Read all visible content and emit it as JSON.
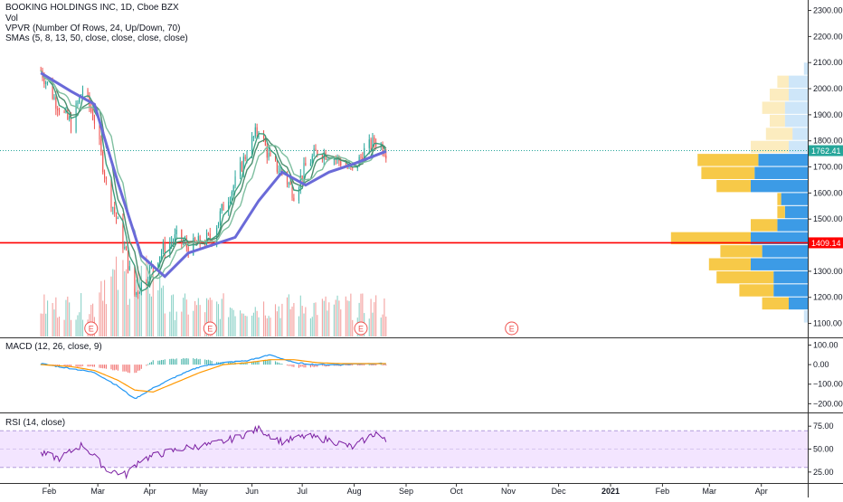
{
  "legends": {
    "title": "BOOKING HOLDINGS INC, 1D, Cboe BZX",
    "vol": "Vol",
    "vpvr": "VPVR (Number Of Rows, 24, Up/Down, 70)",
    "smas": "SMAs (5, 8, 13, 50, close, close, close, close)",
    "macd": "MACD (12, 26, close, 9)",
    "rsi": "RSI (14, close)"
  },
  "colors": {
    "up": "#26a69a",
    "down": "#ef5350",
    "sma50": "#6a6ad8",
    "macd": "#2196f3",
    "signal": "#ff9800",
    "rsi": "#7b1fa2",
    "rsi_band": "#f3e5ff",
    "hline": "#ff0000",
    "last_price": "#26a69a",
    "vpvr_up": "#3c9be6",
    "vpvr_down": "#f7c948"
  },
  "chart_data": {
    "type": "line",
    "title": "BOOKING HOLDINGS INC, 1D, Cboe BZX",
    "price_axis": {
      "ticks": [
        2300,
        2200,
        2100,
        2000,
        1900,
        1800,
        1700,
        1600,
        1500,
        1400,
        1300,
        1200,
        1100
      ],
      "tick_labels": [
        "2300.00",
        "2200.00",
        "2100.00",
        "2000.00",
        "1900.00",
        "1800.00",
        "1700.00",
        "1600.00",
        "1500.00",
        "1400.00",
        "1300.00",
        "1200.00",
        "1100.00"
      ],
      "ylim": [
        1050,
        2340
      ]
    },
    "time_axis": {
      "months": [
        "Feb",
        "Mar",
        "Apr",
        "May",
        "Jun",
        "Jul",
        "Aug",
        "Sep",
        "Oct",
        "Nov",
        "Dec",
        "2021",
        "Feb",
        "Mar",
        "Apr"
      ]
    },
    "last_price": "1762.41",
    "horizontal_line": "1409.14",
    "price_anchors": {
      "x": [
        "2020-01-27",
        "2020-02-05",
        "2020-02-14",
        "2020-02-21",
        "2020-02-28",
        "2020-03-06",
        "2020-03-13",
        "2020-03-18",
        "2020-03-23",
        "2020-03-31",
        "2020-04-08",
        "2020-04-17",
        "2020-04-24",
        "2020-05-01",
        "2020-05-08",
        "2020-05-15",
        "2020-05-22",
        "2020-05-29",
        "2020-06-05",
        "2020-06-12",
        "2020-06-19",
        "2020-06-26",
        "2020-07-03",
        "2020-07-10",
        "2020-07-17",
        "2020-07-24",
        "2020-07-31",
        "2020-08-07",
        "2020-08-14",
        "2020-08-20"
      ],
      "close": [
        2070,
        1950,
        1860,
        2000,
        1880,
        1640,
        1480,
        1360,
        1210,
        1290,
        1380,
        1430,
        1390,
        1410,
        1430,
        1550,
        1640,
        1760,
        1850,
        1720,
        1680,
        1600,
        1700,
        1760,
        1750,
        1720,
        1680,
        1760,
        1800,
        1762
      ]
    },
    "sma50": {
      "x": [
        "2020-01-27",
        "2020-02-14",
        "2020-02-28",
        "2020-03-13",
        "2020-03-27",
        "2020-04-10",
        "2020-04-24",
        "2020-05-08",
        "2020-05-22",
        "2020-06-05",
        "2020-06-19",
        "2020-07-03",
        "2020-07-17",
        "2020-07-31",
        "2020-08-20"
      ],
      "y": [
        2060,
        1990,
        1940,
        1640,
        1360,
        1280,
        1370,
        1400,
        1430,
        1570,
        1680,
        1630,
        1680,
        1710,
        1760
      ]
    },
    "volume_profile": {
      "rows": [
        {
          "price_from": 1100,
          "price_to": 1150,
          "up": 1,
          "down": 0
        },
        {
          "price_from": 1150,
          "price_to": 1200,
          "up": 5,
          "down": 7
        },
        {
          "price_from": 1200,
          "price_to": 1250,
          "up": 9,
          "down": 9
        },
        {
          "price_from": 1250,
          "price_to": 1300,
          "up": 9,
          "down": 15
        },
        {
          "price_from": 1300,
          "price_to": 1350,
          "up": 15,
          "down": 11
        },
        {
          "price_from": 1350,
          "price_to": 1400,
          "up": 12,
          "down": 11
        },
        {
          "price_from": 1400,
          "price_to": 1450,
          "up": 15,
          "down": 21
        },
        {
          "price_from": 1450,
          "price_to": 1500,
          "up": 8,
          "down": 7
        },
        {
          "price_from": 1500,
          "price_to": 1550,
          "up": 6,
          "down": 2
        },
        {
          "price_from": 1550,
          "price_to": 1600,
          "up": 7,
          "down": 1
        },
        {
          "price_from": 1600,
          "price_to": 1650,
          "up": 15,
          "down": 9
        },
        {
          "price_from": 1650,
          "price_to": 1700,
          "up": 14,
          "down": 14
        },
        {
          "price_from": 1700,
          "price_to": 1750,
          "up": 13,
          "down": 16
        },
        {
          "price_from": 1750,
          "price_to": 1800,
          "up": 5,
          "down": 10
        },
        {
          "price_from": 1800,
          "price_to": 1850,
          "up": 4,
          "down": 7
        },
        {
          "price_from": 1850,
          "price_to": 1900,
          "up": 6,
          "down": 4
        },
        {
          "price_from": 1900,
          "price_to": 1950,
          "up": 6,
          "down": 6
        },
        {
          "price_from": 1950,
          "price_to": 2000,
          "up": 5,
          "down": 5
        },
        {
          "price_from": 2000,
          "price_to": 2050,
          "up": 5,
          "down": 3
        },
        {
          "price_from": 2050,
          "price_to": 2100,
          "up": 1,
          "down": 0
        }
      ]
    },
    "macd_axis": {
      "ticks": [
        100,
        0,
        -100,
        -200
      ],
      "tick_labels": [
        "100.00",
        "0.00",
        "−100.00",
        "−200.00"
      ],
      "ylim": [
        -240,
        130
      ]
    },
    "macd_anchors": {
      "x": [
        "2020-01-27",
        "2020-02-14",
        "2020-02-28",
        "2020-03-13",
        "2020-03-23",
        "2020-04-03",
        "2020-04-17",
        "2020-05-01",
        "2020-05-15",
        "2020-05-29",
        "2020-06-12",
        "2020-06-26",
        "2020-07-10",
        "2020-07-24",
        "2020-08-07",
        "2020-08-20"
      ],
      "macd": [
        5,
        -20,
        -40,
        -110,
        -175,
        -120,
        -60,
        -10,
        10,
        20,
        50,
        10,
        0,
        0,
        5,
        5
      ],
      "signal": [
        0,
        -10,
        -30,
        -80,
        -130,
        -140,
        -90,
        -40,
        0,
        10,
        25,
        25,
        10,
        5,
        5,
        5
      ]
    },
    "rsi_axis": {
      "ticks": [
        75,
        50,
        25
      ],
      "tick_labels": [
        "75.00",
        "50.00",
        "25.00"
      ],
      "ylim": [
        14,
        88
      ],
      "band": [
        30,
        70
      ]
    },
    "rsi_anchors": {
      "x": [
        "2020-01-27",
        "2020-02-07",
        "2020-02-21",
        "2020-03-06",
        "2020-03-18",
        "2020-03-26",
        "2020-04-08",
        "2020-04-24",
        "2020-05-08",
        "2020-05-22",
        "2020-06-05",
        "2020-06-19",
        "2020-07-03",
        "2020-07-17",
        "2020-07-31",
        "2020-08-14",
        "2020-08-20"
      ],
      "y": [
        45,
        40,
        55,
        28,
        22,
        38,
        45,
        52,
        55,
        62,
        72,
        58,
        64,
        60,
        52,
        68,
        58
      ]
    },
    "earnings_markers": {
      "x": [
        "2020-02-26",
        "2020-05-07",
        "2020-08-05",
        "2020-11-03"
      ],
      "label": "E"
    }
  }
}
